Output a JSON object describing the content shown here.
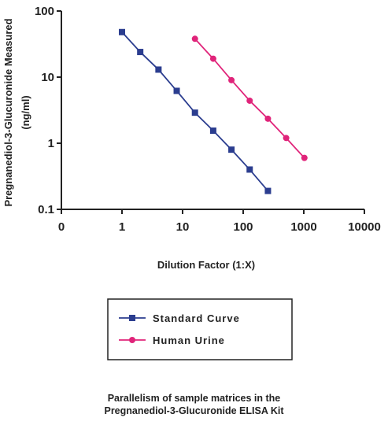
{
  "chart_data": {
    "type": "line",
    "xscale": "log",
    "yscale": "log",
    "xlim": [
      0.1,
      10000
    ],
    "ylim": [
      0.1,
      100
    ],
    "x_tick_labels": [
      "0",
      "1",
      "10",
      "100",
      "1000",
      "10000"
    ],
    "y_tick_labels": [
      "0.1",
      "1",
      "10",
      "100"
    ],
    "xlabel": "Dilution Factor (1:X)",
    "ylabel_line1": "Pregnanediol-3-Glucuronide Measured",
    "ylabel_line2": "(ng/ml)",
    "grid": false,
    "legend_position": "below-plot",
    "series": [
      {
        "name": "Standard Curve",
        "color": "#2b3d8f",
        "marker": "square",
        "x": [
          1,
          2,
          4,
          8,
          16,
          32,
          64,
          128,
          256
        ],
        "y": [
          48,
          24,
          13,
          6.2,
          2.9,
          1.55,
          0.8,
          0.4,
          0.19
        ]
      },
      {
        "name": "Human Urine",
        "color": "#e0247a",
        "marker": "circle",
        "x": [
          16,
          32,
          64,
          128,
          256,
          512,
          1024
        ],
        "y": [
          38,
          19,
          9,
          4.4,
          2.35,
          1.2,
          0.6
        ]
      }
    ]
  },
  "caption": {
    "line1": "Parallelism of sample matrices in the",
    "line2": "Pregnanediol-3-Glucuronide ELISA Kit"
  }
}
